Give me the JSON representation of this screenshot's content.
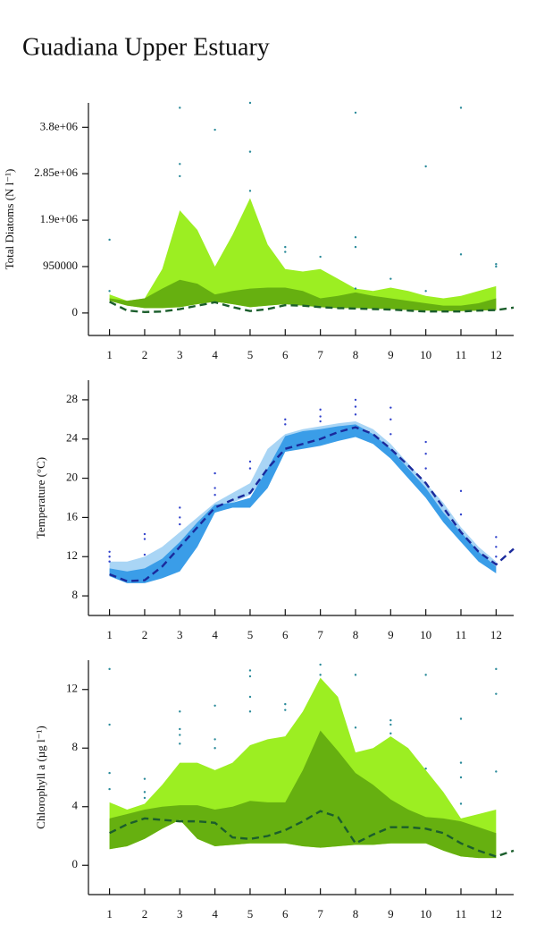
{
  "title": "Guadiana Upper Estuary",
  "chart_data": [
    {
      "type": "band",
      "ylabel": "Total Diatoms (N l⁻¹)",
      "xlim": [
        0.4,
        12.5
      ],
      "xticks": [
        1,
        2,
        3,
        4,
        5,
        6,
        7,
        8,
        9,
        10,
        11,
        12
      ],
      "ylim": [
        -460000,
        4300000
      ],
      "yticks": [
        0,
        950000,
        {
          "value": 1900000,
          "label": "1.9e+06"
        },
        {
          "value": 2850000,
          "label": "2.85e+06"
        },
        {
          "value": 3800000,
          "label": "3.8e+06"
        }
      ],
      "x": [
        1,
        1.5,
        2,
        2.5,
        3,
        3.5,
        4,
        4.5,
        5,
        5.5,
        6,
        6.5,
        7,
        7.5,
        8,
        8.5,
        9,
        9.5,
        10,
        10.5,
        11,
        11.5,
        12
      ],
      "bands": [
        {
          "color": "#9cee22",
          "upper": [
            380000,
            250000,
            300000,
            900000,
            2100000,
            1700000,
            950000,
            1600000,
            2350000,
            1400000,
            900000,
            850000,
            900000,
            700000,
            500000,
            450000,
            520000,
            450000,
            350000,
            300000,
            350000,
            450000,
            550000
          ],
          "lower": [
            250000,
            150000,
            100000,
            100000,
            120000,
            180000,
            230000,
            180000,
            120000,
            150000,
            180000,
            150000,
            120000,
            100000,
            100000,
            90000,
            80000,
            60000,
            50000,
            40000,
            40000,
            50000,
            60000
          ]
        },
        {
          "color": "#66b010",
          "upper": [
            300000,
            250000,
            300000,
            500000,
            680000,
            600000,
            380000,
            450000,
            500000,
            520000,
            520000,
            450000,
            300000,
            350000,
            420000,
            350000,
            300000,
            250000,
            200000,
            150000,
            150000,
            200000,
            300000
          ],
          "lower": [
            250000,
            150000,
            100000,
            100000,
            120000,
            180000,
            230000,
            180000,
            120000,
            150000,
            180000,
            150000,
            120000,
            100000,
            100000,
            90000,
            80000,
            60000,
            50000,
            40000,
            40000,
            50000,
            60000
          ]
        }
      ],
      "line": {
        "color": "#1b5e2c",
        "x": [
          1,
          1.5,
          2,
          2.5,
          3,
          3.5,
          4,
          4.5,
          5,
          5.5,
          6,
          6.5,
          7,
          7.5,
          8,
          8.5,
          9,
          9.5,
          10,
          10.5,
          11,
          11.5,
          12,
          12.5
        ],
        "values": [
          230000,
          50000,
          20000,
          30000,
          80000,
          150000,
          220000,
          120000,
          40000,
          80000,
          160000,
          150000,
          120000,
          100000,
          90000,
          80000,
          70000,
          50000,
          30000,
          30000,
          30000,
          50000,
          60000,
          110000
        ]
      },
      "points": {
        "color": "#2a8a9a",
        "x": [
          1,
          1,
          3,
          3,
          3,
          4,
          5,
          5,
          5,
          6,
          6,
          7,
          8,
          8,
          8,
          8,
          9,
          10,
          10,
          11,
          11,
          12,
          12
        ],
        "y": [
          1500000,
          450000,
          4200000,
          3050000,
          2800000,
          3750000,
          4300000,
          3300000,
          2500000,
          1350000,
          1250000,
          1150000,
          4100000,
          1550000,
          1350000,
          500000,
          700000,
          3000000,
          450000,
          4200000,
          1200000,
          950000,
          1000000
        ]
      }
    },
    {
      "type": "band",
      "ylabel": "Temperature (°C)",
      "xlim": [
        0.4,
        12.5
      ],
      "xticks": [
        1,
        2,
        3,
        4,
        5,
        6,
        7,
        8,
        9,
        10,
        11,
        12
      ],
      "ylim": [
        6,
        30
      ],
      "yticks": [
        8,
        12,
        16,
        20,
        24,
        28
      ],
      "x": [
        1,
        1.5,
        2,
        2.5,
        3,
        3.5,
        4,
        4.5,
        5,
        5.5,
        6,
        6.5,
        7,
        7.5,
        8,
        8.5,
        9,
        9.5,
        10,
        10.5,
        11,
        11.5,
        12
      ],
      "bands": [
        {
          "color": "#a9d5f5",
          "upper": [
            11.5,
            11.5,
            12,
            13,
            14.5,
            16,
            17.5,
            18.5,
            19.5,
            23,
            24.5,
            25,
            25.3,
            25.6,
            25.8,
            25,
            23.5,
            21.5,
            19.5,
            17.5,
            15,
            13,
            11.5
          ],
          "lower": [
            10,
            9.5,
            9.8,
            11,
            12.5,
            14.5,
            16.5,
            17.5,
            18.3,
            20.5,
            23,
            23.3,
            23.5,
            24,
            24.5,
            23.5,
            22,
            20,
            18,
            15.5,
            13.5,
            12,
            10.5
          ]
        },
        {
          "color": "#3a9de8",
          "upper": [
            10.8,
            10.5,
            10.8,
            11.8,
            13.5,
            15.5,
            17.3,
            17.5,
            18,
            21,
            24.3,
            24.8,
            25,
            25.3,
            25.5,
            24.5,
            23,
            21,
            19,
            16.5,
            14.5,
            12.5,
            11
          ],
          "lower": [
            10,
            9.3,
            9.3,
            9.8,
            10.5,
            13,
            16.5,
            17,
            17,
            19,
            22.7,
            23,
            23.3,
            23.8,
            24.2,
            23.5,
            22,
            20,
            18,
            15.5,
            13.5,
            11.5,
            10.3
          ]
        }
      ],
      "line": {
        "color": "#1a2a9c",
        "x": [
          1,
          1.5,
          2,
          2.5,
          3,
          3.5,
          4,
          4.5,
          5,
          5.5,
          6,
          6.5,
          7,
          7.5,
          8,
          8.5,
          9,
          9.5,
          10,
          10.5,
          11,
          11.5,
          12,
          12.5
        ],
        "values": [
          10.2,
          9.5,
          9.6,
          11,
          13,
          15,
          17,
          17.8,
          18.5,
          21,
          23,
          23.5,
          24,
          24.7,
          25.2,
          24.5,
          23,
          21.3,
          19.5,
          17,
          14.5,
          12.5,
          11.2,
          12.8
        ]
      },
      "points": {
        "color": "#3344cc",
        "x": [
          1,
          1,
          1,
          2,
          2,
          2,
          3,
          3,
          3,
          4,
          4,
          4,
          5,
          5,
          6,
          6,
          7,
          7,
          7,
          8,
          8,
          8,
          9,
          9,
          9,
          10,
          10,
          10,
          11,
          11,
          12,
          12,
          12
        ],
        "y": [
          12.5,
          12,
          11.5,
          14.3,
          13.8,
          12.2,
          17,
          16,
          15.3,
          20.5,
          19,
          18.3,
          21.7,
          21,
          26,
          25.5,
          27,
          26.3,
          25.8,
          28,
          27.3,
          26.5,
          27.2,
          26,
          24.5,
          23.7,
          22.5,
          21,
          18.7,
          16.3,
          14,
          13,
          12
        ]
      }
    },
    {
      "type": "band",
      "ylabel": "Chlorophyll a (µg l⁻¹)",
      "xlim": [
        0.4,
        12.5
      ],
      "xticks": [
        1,
        2,
        3,
        4,
        5,
        6,
        7,
        8,
        9,
        10,
        11,
        12
      ],
      "ylim": [
        -2,
        14
      ],
      "yticks": [
        0,
        4,
        8,
        12
      ],
      "x": [
        1,
        1.5,
        2,
        2.5,
        3,
        3.5,
        4,
        4.5,
        5,
        5.5,
        6,
        6.5,
        7,
        7.5,
        8,
        8.5,
        9,
        9.5,
        10,
        10.5,
        11,
        11.5,
        12
      ],
      "bands": [
        {
          "color": "#9cee22",
          "upper": [
            4.3,
            3.8,
            4.2,
            5.5,
            7,
            7,
            6.5,
            7,
            8.2,
            8.6,
            8.8,
            10.5,
            12.8,
            11.5,
            7.7,
            8,
            8.8,
            8,
            6.5,
            5,
            3.2,
            3.5,
            3.8
          ],
          "lower": [
            1.1,
            1.3,
            1.8,
            2.5,
            3.1,
            1.8,
            1.3,
            1.4,
            1.5,
            1.5,
            1.5,
            1.3,
            1.2,
            1.3,
            1.4,
            1.4,
            1.5,
            1.5,
            1.5,
            1,
            0.6,
            0.5,
            0.5
          ]
        },
        {
          "color": "#66b010",
          "upper": [
            3.2,
            3.5,
            3.8,
            4,
            4.1,
            4.1,
            3.8,
            4,
            4.4,
            4.3,
            4.3,
            6.5,
            9.2,
            7.8,
            6.3,
            5.5,
            4.5,
            3.8,
            3.3,
            3.2,
            3,
            2.6,
            2.2
          ],
          "lower": [
            1.1,
            1.3,
            1.8,
            2.5,
            3.1,
            1.8,
            1.3,
            1.4,
            1.5,
            1.5,
            1.5,
            1.3,
            1.2,
            1.3,
            1.4,
            1.4,
            1.5,
            1.5,
            1.5,
            1,
            0.6,
            0.5,
            0.5
          ]
        }
      ],
      "line": {
        "color": "#1b5e2c",
        "x": [
          1,
          1.5,
          2,
          2.5,
          3,
          3.5,
          4,
          4.5,
          5,
          5.5,
          6,
          6.5,
          7,
          7.5,
          8,
          8.5,
          9,
          9.5,
          10,
          10.5,
          11,
          11.5,
          12,
          12.5
        ],
        "values": [
          2.2,
          2.8,
          3.2,
          3.1,
          3,
          3,
          2.9,
          1.9,
          1.8,
          2,
          2.4,
          3,
          3.7,
          3.3,
          1.5,
          2.1,
          2.6,
          2.6,
          2.5,
          2.2,
          1.5,
          1,
          0.6,
          1
        ]
      },
      "points": {
        "color": "#2a8a9a",
        "x": [
          1,
          1,
          1,
          1,
          2,
          2,
          2,
          3,
          3,
          3,
          3,
          4,
          4,
          4,
          5,
          5,
          5,
          5,
          6,
          6,
          7,
          7,
          8,
          8,
          9,
          9,
          9,
          10,
          10,
          11,
          11,
          11,
          11,
          12,
          12,
          12
        ],
        "y": [
          13.4,
          9.6,
          6.3,
          5.2,
          5.9,
          5,
          4.6,
          10.5,
          9.3,
          8.9,
          8.3,
          10.9,
          8.6,
          8,
          13.3,
          12.9,
          11.5,
          10.5,
          11,
          10.6,
          13.7,
          13,
          13,
          9.4,
          9.9,
          9.6,
          9,
          13,
          6.6,
          10,
          7,
          6,
          4.2,
          13.4,
          11.7,
          6.4
        ]
      }
    }
  ]
}
